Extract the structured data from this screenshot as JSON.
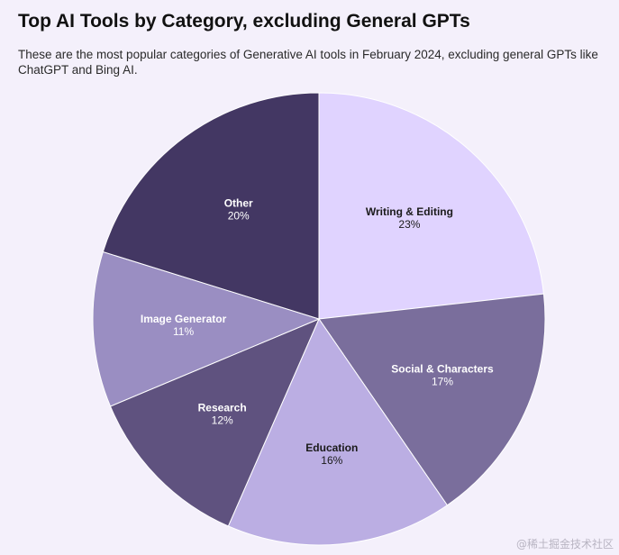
{
  "header": {
    "title": "Top AI Tools by Category, excluding General GPTs",
    "subtitle": "These are the most popular categories of Generative AI tools in February 2024, excluding general GPTs like ChatGPT and Bing AI."
  },
  "chart_data": {
    "type": "pie",
    "title": "Top AI Tools by Category, excluding General GPTs",
    "subtitle": "These are the most popular categories of Generative AI tools in February 2024, excluding general GPTs like ChatGPT and Bing AI.",
    "start": "12 o'clock",
    "direction": "clockwise",
    "slices": [
      {
        "label": "Writing & Editing",
        "value": 23,
        "display": "23%",
        "color": "#e0d3ff",
        "text_color": "#1a1a1a"
      },
      {
        "label": "Social & Characters",
        "value": 17,
        "display": "17%",
        "color": "#7a6e9c",
        "text_color": "#ffffff"
      },
      {
        "label": "Education",
        "value": 16,
        "display": "16%",
        "color": "#bbaee3",
        "text_color": "#1a1a1a"
      },
      {
        "label": "Research",
        "value": 12,
        "display": "12%",
        "color": "#5f527f",
        "text_color": "#ffffff"
      },
      {
        "label": "Image Generator",
        "value": 11,
        "display": "11%",
        "color": "#9a8ec2",
        "text_color": "#ffffff"
      },
      {
        "label": "Other",
        "value": 20,
        "display": "20%",
        "color": "#433763",
        "text_color": "#ffffff"
      }
    ]
  },
  "watermark": {
    "text": "@稀土掘金技术社区"
  },
  "colors": {
    "background": "#f4f0fb",
    "slice_border": "#ffffff"
  }
}
